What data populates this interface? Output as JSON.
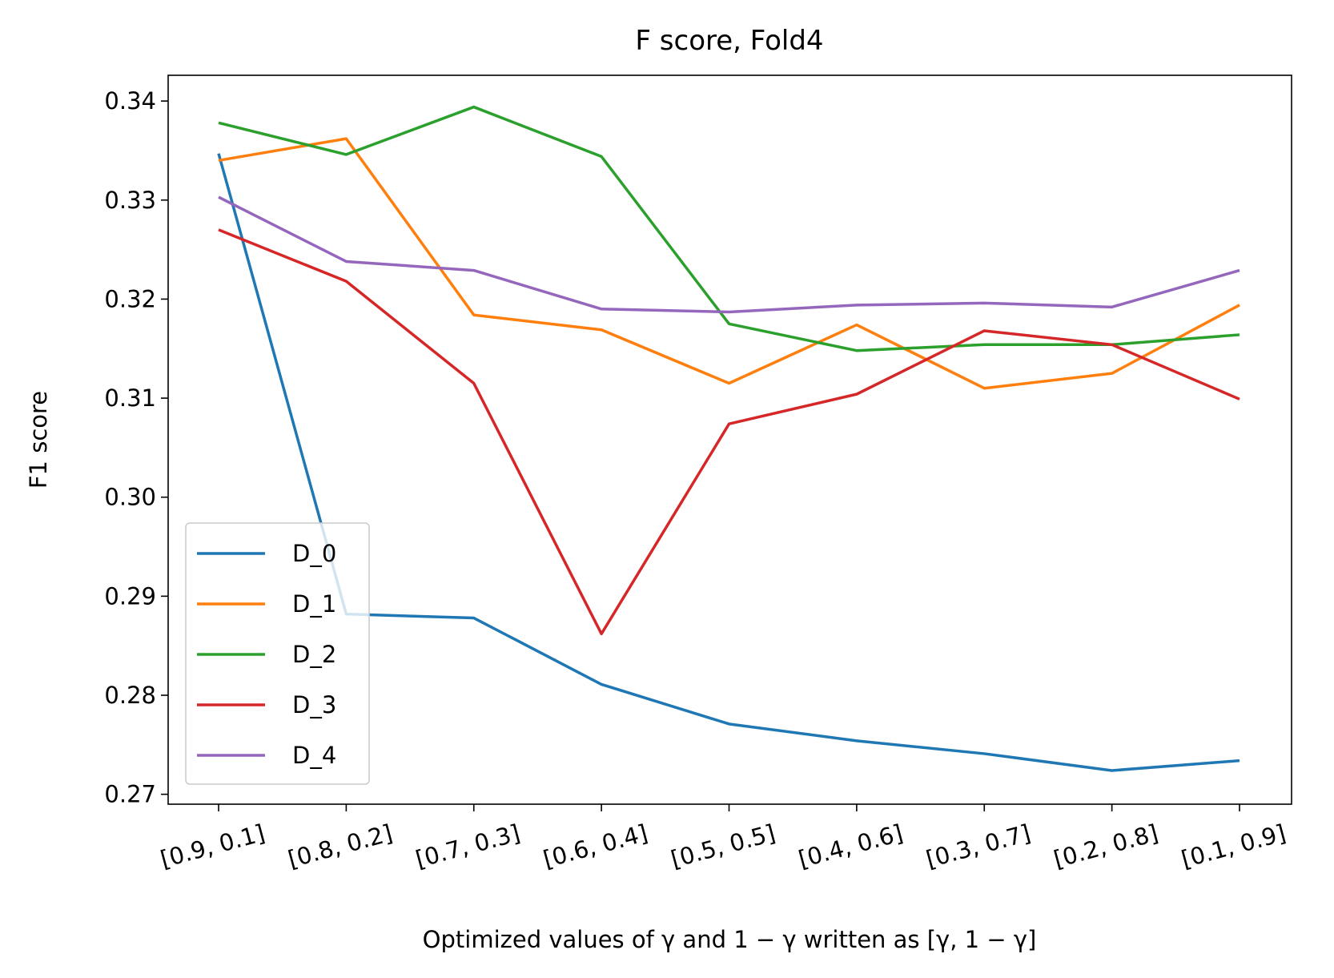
{
  "chart_data": {
    "type": "line",
    "title": "F score, Fold4",
    "x_label": "Optimized values of γ and 1 − γ written as [γ, 1 − γ]",
    "y_label": "F1 score",
    "categories": [
      "[0.9, 0.1]",
      "[0.8, 0.2]",
      "[0.7, 0.3]",
      "[0.6, 0.4]",
      "[0.5, 0.5]",
      "[0.4, 0.6]",
      "[0.3, 0.7]",
      "[0.2, 0.8]",
      "[0.1, 0.9]"
    ],
    "series": [
      {
        "name": "D_0",
        "color": "#1f77b4",
        "values": [
          0.3347,
          0.2882,
          0.2878,
          0.2811,
          0.2771,
          0.2754,
          0.2741,
          0.2724,
          0.2734
        ]
      },
      {
        "name": "D_1",
        "color": "#ff7f0e",
        "values": [
          0.334,
          0.3362,
          0.3184,
          0.3169,
          0.3115,
          0.3174,
          0.311,
          0.3125,
          0.3194
        ]
      },
      {
        "name": "D_2",
        "color": "#2ca02c",
        "values": [
          0.3378,
          0.3346,
          0.3394,
          0.3344,
          0.3175,
          0.3148,
          0.3154,
          0.3154,
          0.3164
        ]
      },
      {
        "name": "D_3",
        "color": "#d62728",
        "values": [
          0.327,
          0.3218,
          0.3115,
          0.2862,
          0.3074,
          0.3104,
          0.3168,
          0.3154,
          0.3099
        ]
      },
      {
        "name": "D_4",
        "color": "#9467bd",
        "values": [
          0.3303,
          0.3238,
          0.3229,
          0.319,
          0.3187,
          0.3194,
          0.3196,
          0.3192,
          0.3229
        ]
      }
    ],
    "ylim": [
      0.269,
      0.3426
    ],
    "yticks": [
      0.27,
      0.28,
      0.29,
      {
        "value": 0.3,
        "label": "0.30"
      },
      0.31,
      0.32,
      0.33,
      0.34
    ],
    "legend": "lower left"
  }
}
